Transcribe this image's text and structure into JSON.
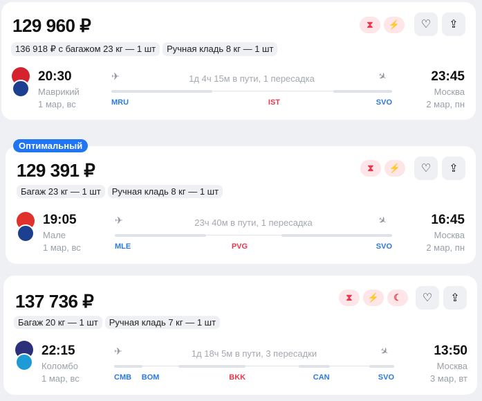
{
  "cards": [
    {
      "price": "129 960 ₽",
      "chips": [
        "136 918 ₽ с багажом 23 кг — 1 шт",
        "Ручная кладь 8 кг — 1 шт"
      ],
      "badges": [
        "hourglass-icon",
        "no-baggage-icon"
      ],
      "dep_time": "20:30",
      "dep_city": "Маврикий",
      "dep_date": "1 мар, вс",
      "arr_time": "23:45",
      "arr_city": "Москва",
      "arr_date": "2 мар, пн",
      "duration": "1д 4ч 15м в пути, 1 пересадка",
      "codes": [
        {
          "code": "MRU",
          "color": "#2a7ae2"
        },
        {
          "code": "IST",
          "color": "#e8384f"
        },
        {
          "code": "SVO",
          "color": "#2a7ae2"
        }
      ]
    },
    {
      "tag": "Оптимальный",
      "price": "129 391 ₽",
      "chips": [
        "Багаж 23 кг — 1 шт",
        "Ручная кладь 8 кг — 1 шт"
      ],
      "badges": [
        "hourglass-icon",
        "no-baggage-icon"
      ],
      "dep_time": "19:05",
      "dep_city": "Мале",
      "dep_date": "1 мар, вс",
      "arr_time": "16:45",
      "arr_city": "Москва",
      "arr_date": "2 мар, пн",
      "duration": "23ч 40м в пути, 1 пересадка",
      "codes": [
        {
          "code": "MLE",
          "color": "#2a7ae2"
        },
        {
          "code": "PVG",
          "color": "#e8384f"
        },
        {
          "code": "SVO",
          "color": "#2a7ae2"
        }
      ]
    },
    {
      "price": "137 736 ₽",
      "chips": [
        "Багаж 20 кг — 1 шт",
        "Ручная кладь 7 кг — 1 шт"
      ],
      "badges": [
        "hourglass-icon",
        "no-baggage-icon",
        "night-icon"
      ],
      "dep_time": "22:15",
      "dep_city": "Коломбо",
      "dep_date": "1 мар, вс",
      "arr_time": "13:50",
      "arr_city": "Москва",
      "arr_date": "3 мар, вт",
      "duration": "1д 18ч 5м в пути, 3 пересадки",
      "codes": [
        {
          "code": "CMB",
          "color": "#2a7ae2"
        },
        {
          "code": "BOM",
          "color": "#2a7ae2"
        },
        {
          "code": "BKK",
          "color": "#e8384f"
        },
        {
          "code": "CAN",
          "color": "#2a7ae2"
        },
        {
          "code": "SVO",
          "color": "#2a7ae2"
        }
      ]
    }
  ],
  "icons": {
    "favorite": "heart-icon",
    "share": "share-icon",
    "departure": "plane-takeoff-icon",
    "arrival": "plane-landing-icon"
  }
}
